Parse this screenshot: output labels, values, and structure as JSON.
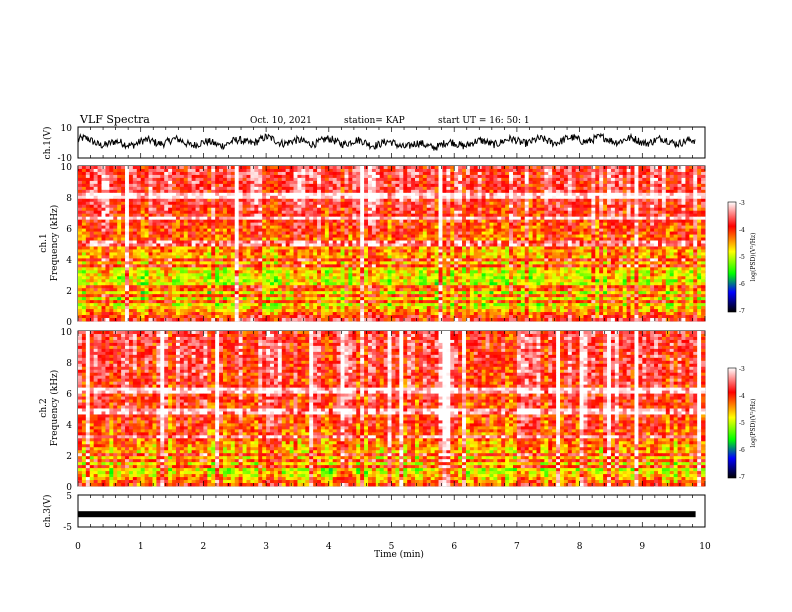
{
  "header": {
    "title": "VLF Spectra",
    "date": "Oct. 10, 2021",
    "station": "station= KAP",
    "start": "start UT =  16: 50: 1"
  },
  "colors": {
    "waveform": "#000000",
    "spectrum_high": "#ff0000",
    "spectrum_mid": "#ffff00",
    "spectrum_low": "#00cc00"
  },
  "chart_data": [
    {
      "type": "line",
      "ylabel": "ch.1(V)",
      "ylim": [
        -10,
        10
      ],
      "yticks": [
        "10",
        "-10"
      ],
      "xlim": [
        0,
        10
      ],
      "x": [
        0,
        0.5,
        1.0,
        1.5,
        2.0,
        2.5,
        3.0,
        3.5,
        4.0,
        4.5,
        5.0,
        5.5,
        6.0,
        6.5,
        7.0,
        7.5,
        8.0,
        8.5,
        9.0,
        9.5,
        9.85
      ],
      "y": [
        2,
        -1,
        0,
        1,
        -1,
        0,
        2,
        0,
        1,
        0,
        -1,
        -2,
        -1,
        0,
        1,
        1,
        2,
        2,
        1,
        1,
        0
      ]
    },
    {
      "type": "heatmap",
      "ylabel": "ch.1\nFrequency (kHz)",
      "ylim": [
        0,
        10
      ],
      "xlim": [
        0,
        10
      ],
      "yticks": [
        "0",
        "2",
        "4",
        "6",
        "8",
        "10"
      ],
      "colorbar": {
        "label": "log(PSD)(V²/Hz)",
        "range": [
          -7,
          -3
        ],
        "ticks": [
          "-3",
          "-4",
          "-5",
          "-6",
          "-7"
        ]
      },
      "mean_level_profile": {
        "freq_khz": [
          0,
          1,
          2,
          3,
          4,
          5,
          6,
          7,
          8,
          9,
          10
        ],
        "log_psd": [
          -3.6,
          -4.8,
          -4.9,
          -4.8,
          -4.5,
          -4.2,
          -4.0,
          -3.8,
          -3.7,
          -3.6,
          -3.6
        ]
      },
      "series": [
        {
          "freq_khz": [
            1.2,
            1.6,
            2.0,
            2.2,
            3.5,
            3.9,
            5.0,
            6.6,
            8.1
          ],
          "type": "horizontal narrowband lines"
        }
      ]
    },
    {
      "type": "heatmap",
      "ylabel": "ch.2\nFrequency (kHz)",
      "ylim": [
        0,
        10
      ],
      "xlim": [
        0,
        10
      ],
      "yticks": [
        "0",
        "2",
        "4",
        "6",
        "8",
        "10"
      ],
      "colorbar": {
        "label": "log(PSD)(V²/Hz)",
        "range": [
          -7,
          -3
        ],
        "ticks": [
          "-3",
          "-4",
          "-5",
          "-6",
          "-7"
        ]
      },
      "mean_level_profile": {
        "freq_khz": [
          0,
          1,
          2,
          3,
          4,
          5,
          6,
          7,
          8,
          9,
          10
        ],
        "log_psd": [
          -4.0,
          -4.9,
          -4.6,
          -4.2,
          -4.0,
          -3.9,
          -3.9,
          -3.8,
          -3.7,
          -3.7,
          -3.7
        ]
      },
      "series": [
        {
          "freq_khz": [
            1.2,
            1.7,
            2.0,
            3.2,
            4.8,
            6.0,
            6.3
          ],
          "type": "horizontal narrowband lines"
        }
      ]
    },
    {
      "type": "line",
      "ylabel": "ch.3(V)",
      "ylim": [
        -5,
        5
      ],
      "yticks": [
        "5",
        "-5"
      ],
      "xlim": [
        0,
        10
      ],
      "x": [
        0,
        9.85
      ],
      "y": [
        -1,
        -1
      ]
    }
  ],
  "xaxis": {
    "label": "Time (min)",
    "ticks": [
      "0",
      "1",
      "2",
      "3",
      "4",
      "5",
      "6",
      "7",
      "8",
      "9",
      "10"
    ]
  }
}
